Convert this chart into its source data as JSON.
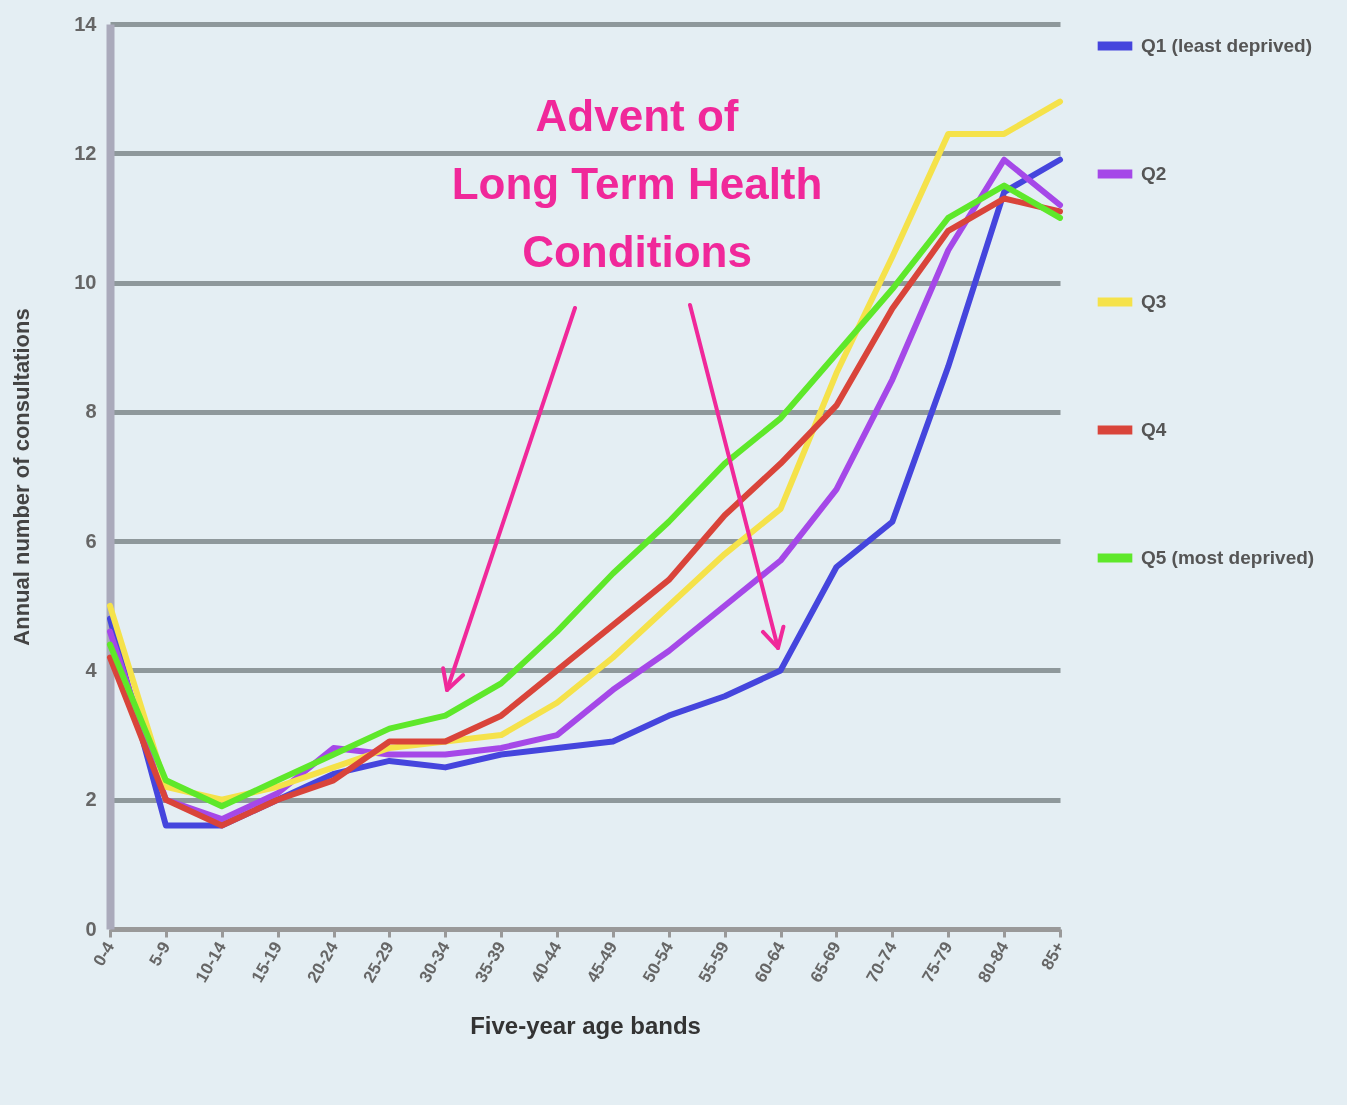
{
  "chart_data": {
    "type": "line",
    "xlabel": "Five-year age bands",
    "ylabel": "Annual number of consultations",
    "categories": [
      "0-4",
      "5-9",
      "10-14",
      "15-19",
      "20-24",
      "25-29",
      "30-34",
      "35-39",
      "40-44",
      "45-49",
      "50-54",
      "55-59",
      "60-64",
      "65-69",
      "70-74",
      "75-79",
      "80-84",
      "85+"
    ],
    "series": [
      {
        "name": "Q1 (least deprived)",
        "color": "#4545dd",
        "values": [
          4.8,
          1.6,
          1.6,
          2.0,
          2.4,
          2.6,
          2.5,
          2.7,
          2.8,
          2.9,
          3.3,
          3.6,
          4.0,
          5.6,
          6.3,
          8.7,
          11.4,
          11.9
        ]
      },
      {
        "name": "Q2",
        "color": "#a548e8",
        "values": [
          4.6,
          2.0,
          1.7,
          2.1,
          2.8,
          2.7,
          2.7,
          2.8,
          3.0,
          3.7,
          4.3,
          5.0,
          5.7,
          6.8,
          8.5,
          10.5,
          11.9,
          11.2
        ]
      },
      {
        "name": "Q3",
        "color": "#f5e24a",
        "values": [
          5.0,
          2.2,
          2.0,
          2.2,
          2.5,
          2.8,
          2.9,
          3.0,
          3.5,
          4.2,
          5.0,
          5.8,
          6.5,
          8.6,
          10.4,
          12.3,
          12.3,
          12.8
        ]
      },
      {
        "name": "Q4",
        "color": "#d9443a",
        "values": [
          4.2,
          2.0,
          1.6,
          2.0,
          2.3,
          2.9,
          2.9,
          3.3,
          4.0,
          4.7,
          5.4,
          6.4,
          7.2,
          8.1,
          9.6,
          10.8,
          11.3,
          11.1
        ]
      },
      {
        "name": "Q5 (most deprived)",
        "color": "#5ee82a",
        "values": [
          4.4,
          2.3,
          1.9,
          2.3,
          2.7,
          3.1,
          3.3,
          3.8,
          4.6,
          5.5,
          6.3,
          7.2,
          7.9,
          8.9,
          9.9,
          11.0,
          11.5,
          11.0
        ]
      }
    ],
    "ylim": [
      0,
      14
    ],
    "yticks": [
      0,
      2,
      4,
      6,
      8,
      10,
      12,
      14
    ],
    "grid": "y",
    "legend": "right",
    "annotations": [
      "Advent of\nLong Term Health\nConditions"
    ]
  }
}
